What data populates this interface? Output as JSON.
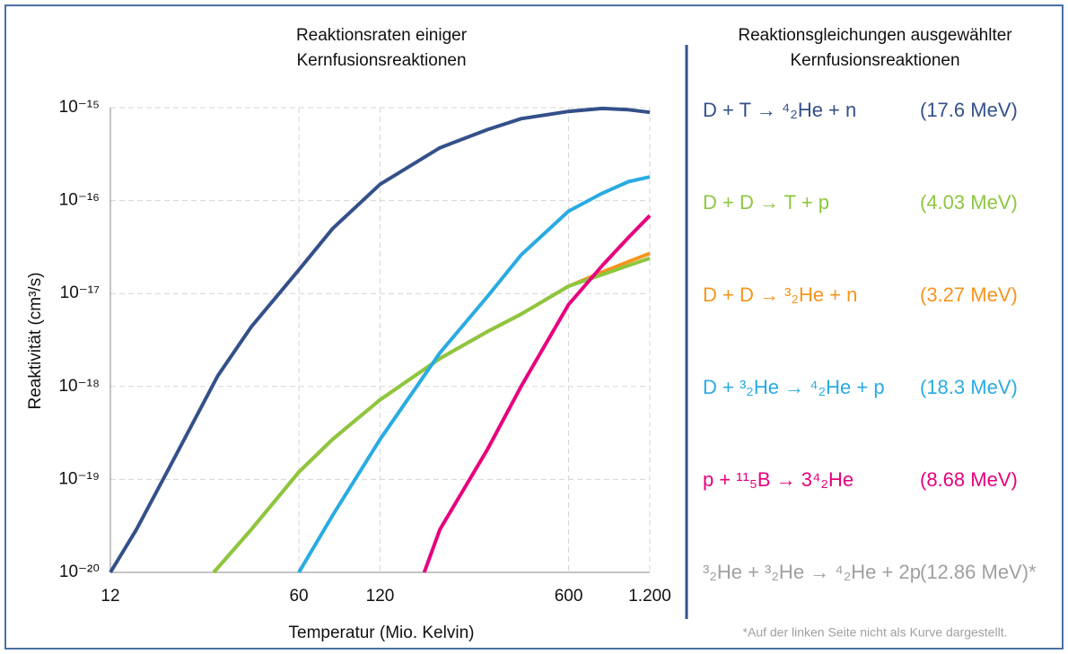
{
  "chart_data": {
    "type": "line",
    "title": [
      "Reaktionsraten einiger",
      "Kernfusionsreaktionen"
    ],
    "xlabel": "Temperatur (Mio. Kelvin)",
    "ylabel": "Reaktivität (cm³/s)",
    "xlog": true,
    "ylog": true,
    "grid": true,
    "xlim": [
      12,
      1200
    ],
    "xticks": [
      12,
      60,
      120,
      600,
      {
        "value": 1200,
        "label": "1.200"
      }
    ],
    "ylim": [
      1e-20,
      1e-15
    ],
    "yticks": [
      {
        "value": 1e-20,
        "label": "10⁻²⁰"
      },
      {
        "value": 1e-19,
        "label": "10⁻¹⁹"
      },
      {
        "value": 1e-18,
        "label": "10⁻¹⁸"
      },
      {
        "value": 1e-17,
        "label": "10⁻¹⁷"
      },
      {
        "value": 1e-16,
        "label": "10⁻¹⁶"
      },
      {
        "value": 1e-15,
        "label": "10⁻¹⁵"
      }
    ],
    "series": [
      {
        "color": "#f7941d",
        "x": [
          29,
          40,
          60,
          80,
          120,
          200,
          300,
          400,
          600,
          800,
          1000,
          1200
        ],
        "values": [
          1e-20,
          2.9e-20,
          1.2e-19,
          2.7e-19,
          7.2e-19,
          2e-18,
          3.9e-18,
          6e-18,
          1.2e-17,
          1.7e-17,
          2.2e-17,
          2.7e-17
        ]
      },
      {
        "color": "#8dc63f",
        "x": [
          29,
          40,
          60,
          80,
          120,
          200,
          300,
          400,
          600,
          800,
          1000,
          1200
        ],
        "values": [
          1e-20,
          2.9e-20,
          1.2e-19,
          2.7e-19,
          7.2e-19,
          2e-18,
          3.9e-18,
          6e-18,
          1.2e-17,
          1.6e-17,
          2e-17,
          2.4e-17
        ]
      },
      {
        "color": "#34508a",
        "x": [
          12,
          15,
          20,
          30,
          40,
          60,
          80,
          120,
          200,
          300,
          400,
          600,
          800,
          1000,
          1200
        ],
        "values": [
          1e-20,
          2.9e-20,
          1.4e-19,
          1.3e-18,
          4.4e-18,
          1.8e-17,
          5e-17,
          1.5e-16,
          3.7e-16,
          5.8e-16,
          7.6e-16,
          9.1e-16,
          9.8e-16,
          9.5e-16,
          8.9e-16
        ]
      },
      {
        "color": "#29abe2",
        "x": [
          60,
          80,
          120,
          200,
          300,
          400,
          600,
          800,
          1000,
          1200
        ],
        "values": [
          1e-20,
          4.1e-20,
          2.7e-19,
          2.3e-18,
          9.3e-18,
          2.6e-17,
          7.7e-17,
          1.2e-16,
          1.6e-16,
          1.8e-16
        ]
      },
      {
        "color": "#e6007e",
        "x": [
          175,
          200,
          300,
          400,
          600,
          800,
          1000,
          1200
        ],
        "values": [
          1e-20,
          2.9e-20,
          2.1e-19,
          1e-18,
          7.6e-18,
          2e-17,
          4e-17,
          6.9e-17
        ]
      }
    ]
  },
  "panel": {
    "title": [
      "Reaktionsgleichungen ausgewählter",
      "Kernfusionsreaktionen"
    ],
    "reactions": [
      {
        "equation": "D + T → ⁴₂He + n",
        "energy": "(17.6 MeV)",
        "color": "#34508a"
      },
      {
        "equation": "D + D → T + p",
        "energy": "(4.03 MeV)",
        "color": "#8dc63f"
      },
      {
        "equation": "D + D → ³₂He + n",
        "energy": "(3.27 MeV)",
        "color": "#f7941d"
      },
      {
        "equation": "D + ³₂He → ⁴₂He + p",
        "energy": "(18.3 MeV)",
        "color": "#29abe2"
      },
      {
        "equation": "p + ¹¹₅B → 3⁴₂He",
        "energy": "(8.68 MeV)",
        "color": "#e6007e"
      },
      {
        "equation": "³₂He + ³₂He → ⁴₂He + 2p",
        "energy": "(12.86 MeV)*",
        "color": "#a0a0a0"
      }
    ],
    "footnote": "*Auf der linken Seite nicht als Kurve dargestellt."
  }
}
